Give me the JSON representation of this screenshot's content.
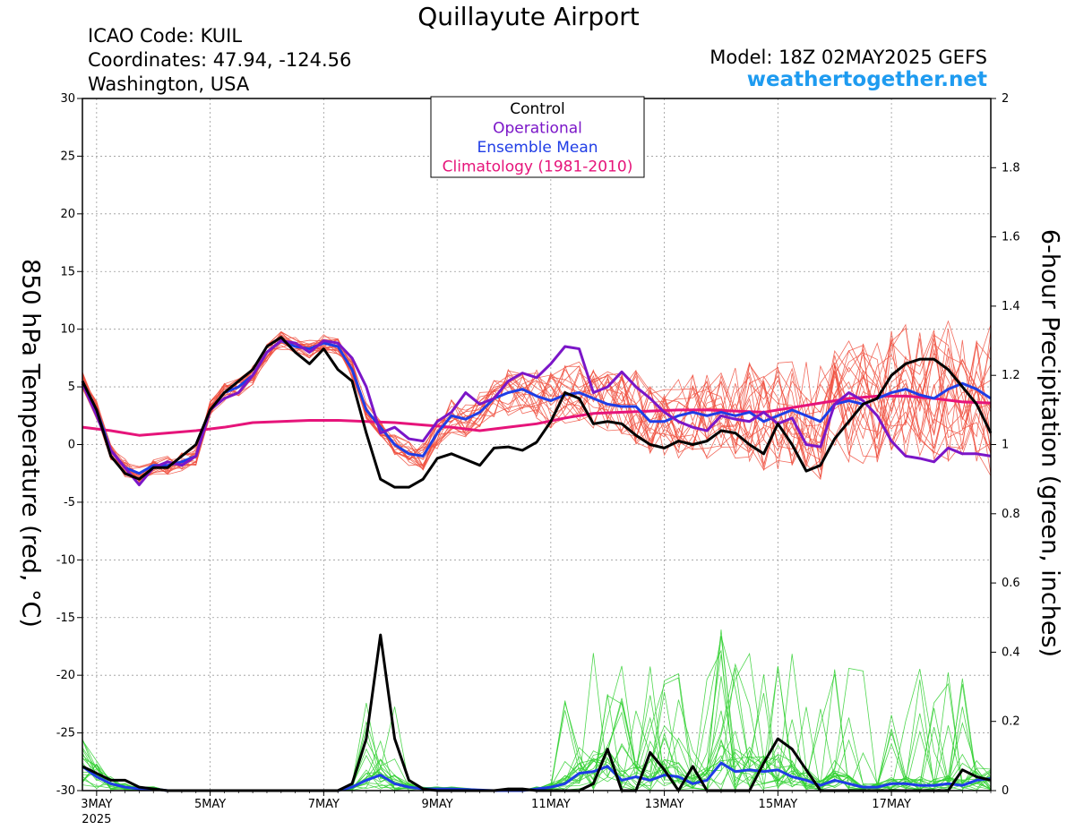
{
  "header": {
    "title": "Quillayute Airport",
    "icao": "ICAO Code: KUIL",
    "coords": "Coordinates: 47.94, -124.56",
    "region": "Washington, USA",
    "model": "Model: 18Z 02MAY2025 GEFS",
    "site": "weathertogether.net"
  },
  "colors": {
    "control": "#000000",
    "operational": "#7b16c8",
    "mean": "#1f3de6",
    "climatology": "#e6147a",
    "members_temp": "#f05040",
    "members_precip": "#30d030"
  },
  "chart_data": {
    "type": "line",
    "ylabel": "850 hPa Temperature (red, °C)",
    "y2label": "6-hour Precipitation (green, inches)",
    "ylim": [
      -30,
      30
    ],
    "y2lim": [
      0,
      2
    ],
    "yticks": [
      "30",
      "25",
      "20",
      "15",
      "10",
      "5",
      "0",
      "-5",
      "-10",
      "-15",
      "-20",
      "-25",
      "-30"
    ],
    "y2ticks": [
      "2",
      "1.8",
      "1.6",
      "1.4",
      "1.2",
      "1",
      "0.8",
      "0.6",
      "0.4",
      "0.2",
      "0"
    ],
    "x_range_days": [
      2.75,
      18.75
    ],
    "xticks": [
      {
        "label": "3MAY",
        "day": 3,
        "year": "2025"
      },
      {
        "label": "5MAY",
        "day": 5
      },
      {
        "label": "7MAY",
        "day": 7
      },
      {
        "label": "9MAY",
        "day": 9
      },
      {
        "label": "11MAY",
        "day": 11
      },
      {
        "label": "13MAY",
        "day": 13
      },
      {
        "label": "15MAY",
        "day": 15
      },
      {
        "label": "17MAY",
        "day": 17
      }
    ],
    "legend": [
      "Control",
      "Operational",
      "Ensemble Mean",
      "Climatology (1981-2010)"
    ],
    "series_temp": {
      "control": [
        [
          2.75,
          5.5
        ],
        [
          3,
          3
        ],
        [
          3.25,
          -1
        ],
        [
          3.5,
          -2.5
        ],
        [
          3.75,
          -3
        ],
        [
          4,
          -2
        ],
        [
          4.25,
          -2
        ],
        [
          4.5,
          -1
        ],
        [
          4.75,
          0
        ],
        [
          5,
          3
        ],
        [
          5.25,
          4.5
        ],
        [
          5.5,
          5.5
        ],
        [
          5.75,
          6.5
        ],
        [
          6,
          8.5
        ],
        [
          6.25,
          9.3
        ],
        [
          6.5,
          8
        ],
        [
          6.75,
          7
        ],
        [
          7,
          8.3
        ],
        [
          7.25,
          6.5
        ],
        [
          7.5,
          5.5
        ],
        [
          7.75,
          1
        ],
        [
          8,
          -3
        ],
        [
          8.25,
          -3.7
        ],
        [
          8.5,
          -3.7
        ],
        [
          8.75,
          -3
        ],
        [
          9,
          -1.2
        ],
        [
          9.25,
          -0.8
        ],
        [
          9.5,
          -1.3
        ],
        [
          9.75,
          -1.8
        ],
        [
          10,
          -0.3
        ],
        [
          10.25,
          -0.2
        ],
        [
          10.5,
          -0.5
        ],
        [
          10.75,
          0.2
        ],
        [
          11,
          2
        ],
        [
          11.25,
          4.5
        ],
        [
          11.5,
          4
        ],
        [
          11.75,
          1.8
        ],
        [
          12,
          2
        ],
        [
          12.25,
          1.8
        ],
        [
          12.5,
          0.8
        ],
        [
          12.75,
          0
        ],
        [
          13,
          -0.3
        ],
        [
          13.25,
          0.3
        ],
        [
          13.5,
          0
        ],
        [
          13.75,
          0.3
        ],
        [
          14,
          1.2
        ],
        [
          14.25,
          1
        ],
        [
          14.5,
          0
        ],
        [
          14.75,
          -0.8
        ],
        [
          15,
          1.8
        ],
        [
          15.25,
          0
        ],
        [
          15.5,
          -2.3
        ],
        [
          15.75,
          -1.8
        ],
        [
          16,
          0.5
        ],
        [
          16.25,
          2
        ],
        [
          16.5,
          3.5
        ],
        [
          16.75,
          4
        ],
        [
          17,
          6
        ],
        [
          17.25,
          7
        ],
        [
          17.5,
          7.4
        ],
        [
          17.75,
          7.4
        ],
        [
          18,
          6.5
        ],
        [
          18.25,
          5
        ],
        [
          18.5,
          3.5
        ],
        [
          18.75,
          1
        ]
      ],
      "operational": [
        [
          2.75,
          5.3
        ],
        [
          3,
          2.5
        ],
        [
          3.25,
          -0.5
        ],
        [
          3.5,
          -2
        ],
        [
          3.75,
          -3.5
        ],
        [
          4,
          -2
        ],
        [
          4.25,
          -1.5
        ],
        [
          4.5,
          -1.8
        ],
        [
          4.75,
          -1
        ],
        [
          5,
          3
        ],
        [
          5.25,
          4
        ],
        [
          5.5,
          4.5
        ],
        [
          5.75,
          6
        ],
        [
          6,
          8
        ],
        [
          6.25,
          9
        ],
        [
          6.5,
          8.8
        ],
        [
          6.75,
          8
        ],
        [
          7,
          9
        ],
        [
          7.25,
          8.8
        ],
        [
          7.5,
          7.5
        ],
        [
          7.75,
          5
        ],
        [
          8,
          1
        ],
        [
          8.25,
          1.5
        ],
        [
          8.5,
          0.5
        ],
        [
          8.75,
          0.3
        ],
        [
          9,
          2
        ],
        [
          9.25,
          2.8
        ],
        [
          9.5,
          4.5
        ],
        [
          9.75,
          3.5
        ],
        [
          10,
          4
        ],
        [
          10.25,
          5.5
        ],
        [
          10.5,
          6.2
        ],
        [
          10.75,
          5.8
        ],
        [
          11,
          7
        ],
        [
          11.25,
          8.5
        ],
        [
          11.5,
          8.3
        ],
        [
          11.75,
          4.5
        ],
        [
          12,
          5
        ],
        [
          12.25,
          6.3
        ],
        [
          12.5,
          5
        ],
        [
          12.75,
          4
        ],
        [
          13,
          2.8
        ],
        [
          13.25,
          2
        ],
        [
          13.5,
          1.5
        ],
        [
          13.75,
          1.2
        ],
        [
          14,
          2.5
        ],
        [
          14.25,
          2.2
        ],
        [
          14.5,
          2
        ],
        [
          14.75,
          2.8
        ],
        [
          15,
          1.8
        ],
        [
          15.25,
          2.3
        ],
        [
          15.5,
          0
        ],
        [
          15.75,
          -0.2
        ],
        [
          16,
          3.5
        ],
        [
          16.25,
          4.5
        ],
        [
          16.5,
          3.8
        ],
        [
          16.75,
          2.5
        ],
        [
          17,
          0.3
        ],
        [
          17.25,
          -1
        ],
        [
          17.5,
          -1.2
        ],
        [
          17.75,
          -1.5
        ],
        [
          18,
          -0.3
        ],
        [
          18.25,
          -0.8
        ],
        [
          18.5,
          -0.8
        ],
        [
          18.75,
          -1
        ]
      ],
      "mean": [
        [
          2.75,
          5.5
        ],
        [
          3,
          3
        ],
        [
          3.25,
          -0.5
        ],
        [
          3.5,
          -2
        ],
        [
          3.75,
          -2.5
        ],
        [
          4,
          -1.8
        ],
        [
          4.25,
          -1.8
        ],
        [
          4.5,
          -1.5
        ],
        [
          4.75,
          -1
        ],
        [
          5,
          3
        ],
        [
          5.25,
          4.5
        ],
        [
          5.5,
          5
        ],
        [
          5.75,
          6
        ],
        [
          6,
          8
        ],
        [
          6.25,
          9
        ],
        [
          6.5,
          8.5
        ],
        [
          6.75,
          8.3
        ],
        [
          7,
          8.8
        ],
        [
          7.25,
          8.5
        ],
        [
          7.5,
          6.5
        ],
        [
          7.75,
          3
        ],
        [
          8,
          1.5
        ],
        [
          8.25,
          0
        ],
        [
          8.5,
          -0.8
        ],
        [
          8.75,
          -1
        ],
        [
          9,
          1
        ],
        [
          9.25,
          2.5
        ],
        [
          9.5,
          2.2
        ],
        [
          9.75,
          2.8
        ],
        [
          10,
          4
        ],
        [
          10.25,
          4.5
        ],
        [
          10.5,
          4.8
        ],
        [
          10.75,
          4.2
        ],
        [
          11,
          3.8
        ],
        [
          11.25,
          4.3
        ],
        [
          11.5,
          4.5
        ],
        [
          11.75,
          4
        ],
        [
          12,
          3.5
        ],
        [
          12.25,
          3.3
        ],
        [
          12.5,
          3.3
        ],
        [
          12.75,
          2
        ],
        [
          13,
          2
        ],
        [
          13.25,
          2.5
        ],
        [
          13.5,
          2.8
        ],
        [
          13.75,
          2.5
        ],
        [
          14,
          2.8
        ],
        [
          14.25,
          2.5
        ],
        [
          14.5,
          2.8
        ],
        [
          14.75,
          2
        ],
        [
          15,
          2.5
        ],
        [
          15.25,
          3
        ],
        [
          15.5,
          2.5
        ],
        [
          15.75,
          2
        ],
        [
          16,
          3.5
        ],
        [
          16.25,
          3.8
        ],
        [
          16.5,
          3.5
        ],
        [
          16.75,
          4
        ],
        [
          17,
          4.5
        ],
        [
          17.25,
          4.8
        ],
        [
          17.5,
          4.3
        ],
        [
          17.75,
          4
        ],
        [
          18,
          4.8
        ],
        [
          18.25,
          5.3
        ],
        [
          18.5,
          4.8
        ],
        [
          18.75,
          4
        ]
      ],
      "climatology": [
        [
          2.75,
          1.5
        ],
        [
          3.25,
          1.2
        ],
        [
          3.75,
          0.8
        ],
        [
          4.25,
          1
        ],
        [
          4.75,
          1.2
        ],
        [
          5.25,
          1.5
        ],
        [
          5.75,
          1.9
        ],
        [
          6.25,
          2
        ],
        [
          6.75,
          2.1
        ],
        [
          7.25,
          2.1
        ],
        [
          7.75,
          2.0
        ],
        [
          8.25,
          1.9
        ],
        [
          8.75,
          1.7
        ],
        [
          9.25,
          1.5
        ],
        [
          9.75,
          1.2
        ],
        [
          10.25,
          1.5
        ],
        [
          10.75,
          1.8
        ],
        [
          11.25,
          2.3
        ],
        [
          11.75,
          2.7
        ],
        [
          12.25,
          2.8
        ],
        [
          12.75,
          2.9
        ],
        [
          13.25,
          3
        ],
        [
          13.75,
          3
        ],
        [
          14.25,
          2.9
        ],
        [
          14.75,
          2.8
        ],
        [
          15.25,
          3.2
        ],
        [
          15.75,
          3.6
        ],
        [
          16.25,
          4
        ],
        [
          16.75,
          4.2
        ],
        [
          17.25,
          4.2
        ],
        [
          17.75,
          4.0
        ],
        [
          18.25,
          3.7
        ],
        [
          18.75,
          3.6
        ]
      ]
    },
    "series_precip": {
      "control": [
        [
          2.75,
          0.07
        ],
        [
          3,
          0.05
        ],
        [
          3.25,
          0.03
        ],
        [
          3.5,
          0.03
        ],
        [
          3.75,
          0.01
        ],
        [
          4,
          0.005
        ],
        [
          4.25,
          0
        ],
        [
          5,
          0
        ],
        [
          6,
          0
        ],
        [
          7,
          0
        ],
        [
          7.25,
          0
        ],
        [
          7.5,
          0.02
        ],
        [
          7.75,
          0.15
        ],
        [
          8,
          0.45
        ],
        [
          8.25,
          0.15
        ],
        [
          8.5,
          0.03
        ],
        [
          8.75,
          0.005
        ],
        [
          9,
          0
        ],
        [
          10,
          0
        ],
        [
          10.25,
          0.005
        ],
        [
          10.5,
          0.005
        ],
        [
          10.75,
          0
        ],
        [
          11,
          0
        ],
        [
          11.25,
          0
        ],
        [
          11.5,
          0
        ],
        [
          11.75,
          0.02
        ],
        [
          12,
          0.12
        ],
        [
          12.25,
          0
        ],
        [
          12.5,
          0
        ],
        [
          12.75,
          0.11
        ],
        [
          13,
          0.06
        ],
        [
          13.25,
          0
        ],
        [
          13.5,
          0.07
        ],
        [
          13.75,
          0
        ],
        [
          14,
          0
        ],
        [
          14.25,
          0
        ],
        [
          14.5,
          0
        ],
        [
          14.75,
          0.08
        ],
        [
          15,
          0.15
        ],
        [
          15.25,
          0.12
        ],
        [
          15.5,
          0.06
        ],
        [
          15.75,
          0
        ],
        [
          16,
          0
        ],
        [
          17,
          0
        ],
        [
          18,
          0
        ],
        [
          18.25,
          0.06
        ],
        [
          18.5,
          0.04
        ],
        [
          18.75,
          0.03
        ]
      ],
      "mean": [
        [
          2.75,
          0.07
        ],
        [
          3,
          0.04
        ],
        [
          3.25,
          0.02
        ],
        [
          3.5,
          0.01
        ],
        [
          3.75,
          0.005
        ],
        [
          4,
          0.005
        ],
        [
          4.25,
          0
        ],
        [
          7.25,
          0
        ],
        [
          7.5,
          0.01
        ],
        [
          7.75,
          0.03
        ],
        [
          8,
          0.045
        ],
        [
          8.25,
          0.02
        ],
        [
          8.5,
          0.01
        ],
        [
          8.75,
          0.005
        ],
        [
          9,
          0.005
        ],
        [
          9.25,
          0.005
        ],
        [
          10,
          0
        ],
        [
          10.5,
          0
        ],
        [
          10.75,
          0.005
        ],
        [
          11,
          0.01
        ],
        [
          11.25,
          0.02
        ],
        [
          11.5,
          0.05
        ],
        [
          11.75,
          0.055
        ],
        [
          12,
          0.07
        ],
        [
          12.25,
          0.03
        ],
        [
          12.5,
          0.04
        ],
        [
          12.75,
          0.03
        ],
        [
          13,
          0.045
        ],
        [
          13.25,
          0.04
        ],
        [
          13.5,
          0.02
        ],
        [
          13.75,
          0.03
        ],
        [
          14,
          0.08
        ],
        [
          14.25,
          0.055
        ],
        [
          14.5,
          0.06
        ],
        [
          14.75,
          0.055
        ],
        [
          15,
          0.06
        ],
        [
          15.25,
          0.04
        ],
        [
          15.5,
          0.03
        ],
        [
          15.75,
          0.015
        ],
        [
          16,
          0.03
        ],
        [
          16.25,
          0.02
        ],
        [
          16.5,
          0.01
        ],
        [
          16.75,
          0.01
        ],
        [
          17,
          0.02
        ],
        [
          17.25,
          0.02
        ],
        [
          17.5,
          0.015
        ],
        [
          17.75,
          0.015
        ],
        [
          18,
          0.02
        ],
        [
          18.25,
          0.015
        ],
        [
          18.5,
          0.03
        ],
        [
          18.75,
          0.035
        ]
      ]
    }
  }
}
